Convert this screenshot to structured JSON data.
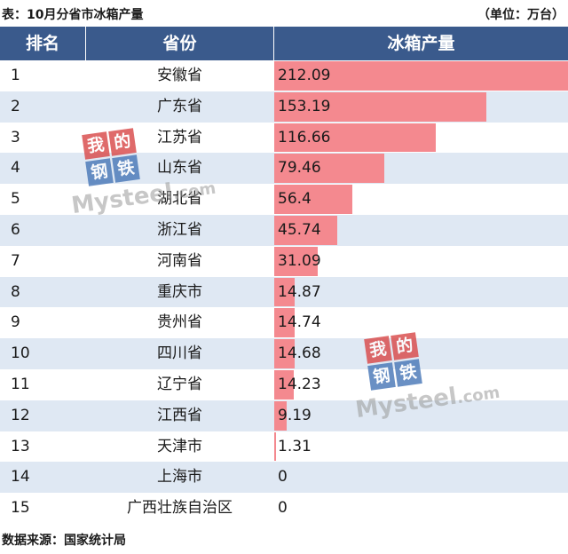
{
  "caption": "表：10月分省市冰箱产量",
  "unit": "（单位：万台）",
  "headers": {
    "rank": "排名",
    "province": "省份",
    "value": "冰箱产量"
  },
  "source": "数据来源：国家统计局",
  "watermark": {
    "glyphs": [
      "我",
      "的",
      "钢",
      "铁"
    ],
    "word": "Mysteel",
    "suffix": ".com"
  },
  "colors": {
    "header_bg": "#3a5a8c",
    "stripe": "#dfe8f3",
    "bar": "#f4898f"
  },
  "chart_data": {
    "type": "table",
    "title": "表：10月分省市冰箱产量",
    "unit": "（单位：万台）",
    "columns": [
      "排名",
      "省份",
      "冰箱产量"
    ],
    "max_value": 212.09,
    "rows": [
      {
        "rank": "1",
        "province": "安徽省",
        "value": 212.09,
        "label": "212.09"
      },
      {
        "rank": "2",
        "province": "广东省",
        "value": 153.19,
        "label": "153.19"
      },
      {
        "rank": "3",
        "province": "江苏省",
        "value": 116.66,
        "label": "116.66"
      },
      {
        "rank": "4",
        "province": "山东省",
        "value": 79.46,
        "label": "79.46"
      },
      {
        "rank": "5",
        "province": "湖北省",
        "value": 56.4,
        "label": "56.4"
      },
      {
        "rank": "6",
        "province": "浙江省",
        "value": 45.74,
        "label": "45.74"
      },
      {
        "rank": "7",
        "province": "河南省",
        "value": 31.09,
        "label": "31.09"
      },
      {
        "rank": "8",
        "province": "重庆市",
        "value": 14.87,
        "label": "14.87"
      },
      {
        "rank": "9",
        "province": "贵州省",
        "value": 14.74,
        "label": "14.74"
      },
      {
        "rank": "10",
        "province": "四川省",
        "value": 14.68,
        "label": "14.68"
      },
      {
        "rank": "11",
        "province": "辽宁省",
        "value": 14.23,
        "label": "14.23"
      },
      {
        "rank": "12",
        "province": "江西省",
        "value": 9.19,
        "label": "9.19"
      },
      {
        "rank": "13",
        "province": "天津市",
        "value": 1.31,
        "label": "1.31"
      },
      {
        "rank": "14",
        "province": "上海市",
        "value": 0,
        "label": "0"
      },
      {
        "rank": "15",
        "province": "广西壮族自治区",
        "value": 0,
        "label": "0"
      }
    ]
  }
}
